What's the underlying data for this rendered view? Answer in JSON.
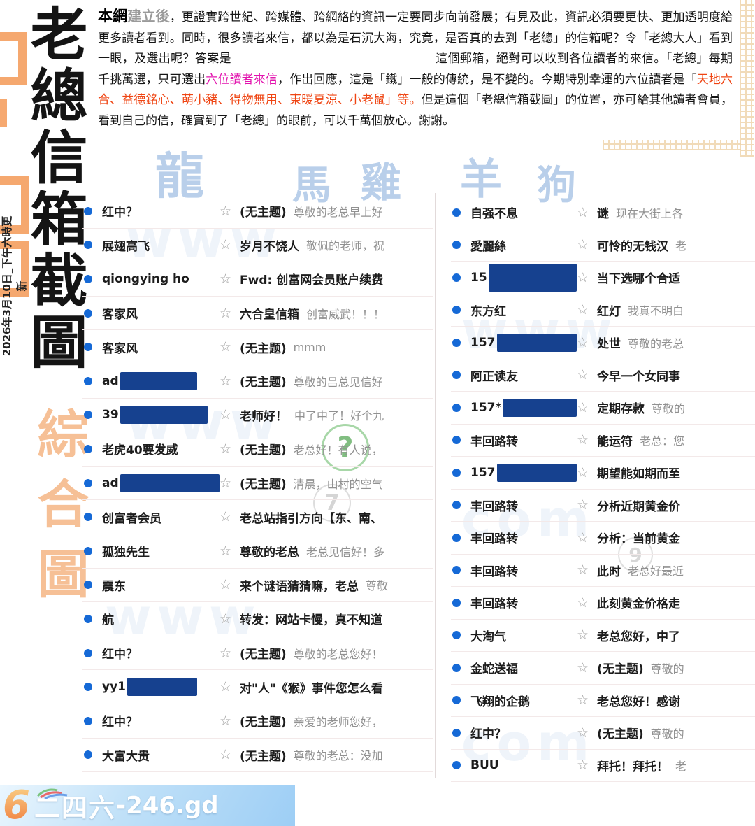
{
  "sidebar": {
    "title": "老總信箱截圖",
    "subtitle": "綜合圖",
    "date_note": "2026年3月10日_下午六時更新"
  },
  "intro": {
    "lead_bold": "本網",
    "lead_light": "建立後",
    "part1": "，更證實跨世紀、跨媒體、跨網絡的資訊一定要同步向前發展；有見及此，資訊必須要更快、更加透明度給更多讀者看到。同時，很多讀者來信，都以為是石沉大海，究竟，是否真的去到「老總」的信箱呢？令「老總大人」看到一眼，及選出呢？答案是",
    "part2": "這個郵箱，絕對可以收到各位讀者的來信。「老總」每期千挑萬選，只可選出",
    "highlight_magenta": "六位讀者來信",
    "part3": "，作出回應，這是「鐵」一般的傳統，是不變的。今期特別幸運的六位讀者是「",
    "highlight_red": "天地六合、益德銘心、萌小豬、得物無用、東暖夏涼、小老鼠」等。",
    "part4": "但是這個「老總信箱截圖」的位置，亦可給其他讀者會員，看到自己的信，確實到了「老總」的眼前，可以千萬個放心。謝謝。"
  },
  "watermarks": {
    "zodiac": [
      "龍",
      "馬",
      "雞",
      "羊",
      "狗"
    ],
    "ghosts": [
      "www",
      "www",
      "com",
      "www",
      "com",
      "www"
    ],
    "circles": [
      "?",
      "7",
      "9"
    ]
  },
  "mail": {
    "star_glyph": "☆",
    "left": [
      {
        "sender": "红中？",
        "redact_w": 0,
        "subject": "(无主题)",
        "preview": "尊敬的老总早上好"
      },
      {
        "sender": "展翅高飞",
        "redact_w": 0,
        "subject": "岁月不饶人",
        "preview": "敬佩的老师，祝"
      },
      {
        "sender": "qiongying ho",
        "redact_w": 0,
        "subject": "Fwd: 创富网会员账户续费",
        "preview": ""
      },
      {
        "sender": "客家风",
        "redact_w": 0,
        "subject": "六合皇信箱",
        "preview": "创富威武！！！"
      },
      {
        "sender": "客家风",
        "redact_w": 0,
        "subject": "(无主题)",
        "preview": "mmm"
      },
      {
        "sender": "ad",
        "redact_w": 110,
        "subject": "(无主题)",
        "preview": "尊敬的吕总见信好"
      },
      {
        "sender": "39",
        "redact_w": 125,
        "subject": "老师好！",
        "preview": "中了中了！好个九"
      },
      {
        "sender": "老虎40要发威",
        "redact_w": 0,
        "subject": "(无主题)",
        "preview": "老总好！有人说，"
      },
      {
        "sender": "ad",
        "redact_w": 145,
        "subject": "(无主题)",
        "preview": "清晨，山村的空气"
      },
      {
        "sender": "创富者会员",
        "redact_w": 0,
        "subject": "老总站指引方向【东、南、",
        "preview": ""
      },
      {
        "sender": "孤独先生",
        "redact_w": 0,
        "subject": "尊敬的老总",
        "preview": "老总见信好！多"
      },
      {
        "sender": "震东",
        "redact_w": 0,
        "subject": "来个谜语猜猜嘛，老总",
        "preview": "尊敬"
      },
      {
        "sender": "航",
        "redact_w": 0,
        "subject": "转发：网站卡慢，真不知道",
        "preview": ""
      },
      {
        "sender": "红中？",
        "redact_w": 0,
        "subject": "(无主题)",
        "preview": "尊敬的老总您好！"
      },
      {
        "sender": "yy1",
        "redact_w": 100,
        "subject": "对\"人\"《猴》事件您怎么看",
        "preview": ""
      },
      {
        "sender": "红中？",
        "redact_w": 0,
        "subject": "(无主题)",
        "preview": "亲爱的老师您好，"
      },
      {
        "sender": "大富大贵",
        "redact_w": 0,
        "subject": "(无主题)",
        "preview": "尊敬的老总：没加"
      }
    ],
    "right": [
      {
        "sender": "自强不息",
        "redact_w": 0,
        "subject": "谜",
        "preview": "现在大街上各"
      },
      {
        "sender": "愛麗絲",
        "redact_w": 0,
        "subject": "可怜的无钱汉",
        "preview": "老"
      },
      {
        "sender": "15",
        "redact_w": 190,
        "redact_h": 40,
        "subject": "当下选哪个合适",
        "preview": ""
      },
      {
        "sender": "东方红",
        "redact_w": 0,
        "subject": "红灯",
        "preview": "我真不明白"
      },
      {
        "sender": "157",
        "redact_w": 118,
        "subject": "处世",
        "preview": "尊敬的老总"
      },
      {
        "sender": "阿正读友",
        "redact_w": 0,
        "subject": "今早一个女同事",
        "preview": ""
      },
      {
        "sender": "157*",
        "redact_w": 125,
        "subject": "定期存款",
        "preview": "尊敬的"
      },
      {
        "sender": "丰回路转",
        "redact_w": 0,
        "subject": "能运符",
        "preview": "老总：您"
      },
      {
        "sender": "157",
        "redact_w": 135,
        "subject": "期望能如期而至",
        "preview": ""
      },
      {
        "sender": "丰回路转",
        "redact_w": 0,
        "subject": "分析近期黄金价",
        "preview": ""
      },
      {
        "sender": "丰回路转",
        "redact_w": 0,
        "subject": "分析：当前黄金",
        "preview": ""
      },
      {
        "sender": "丰回路转",
        "redact_w": 0,
        "subject": "此时",
        "preview": "老总好最近"
      },
      {
        "sender": "丰回路转",
        "redact_w": 0,
        "subject": "此刻黄金价格走",
        "preview": ""
      },
      {
        "sender": "大淘气",
        "redact_w": 0,
        "subject": "老总您好，中了",
        "preview": ""
      },
      {
        "sender": "金蛇送福",
        "redact_w": 0,
        "subject": "(无主题)",
        "preview": "尊敬的"
      },
      {
        "sender": "飞翔的企鹅",
        "redact_w": 0,
        "subject": "老总您好！感谢",
        "preview": ""
      },
      {
        "sender": "红中？",
        "redact_w": 0,
        "subject": "(无主题)",
        "preview": "尊敬的"
      },
      {
        "sender": "BUU",
        "redact_w": 0,
        "subject": "拜托！拜托！",
        "preview": "老"
      }
    ]
  },
  "footer": {
    "logo_digit": "6",
    "brand_cn": "二四六",
    "brand_domain": "-246.gd"
  }
}
